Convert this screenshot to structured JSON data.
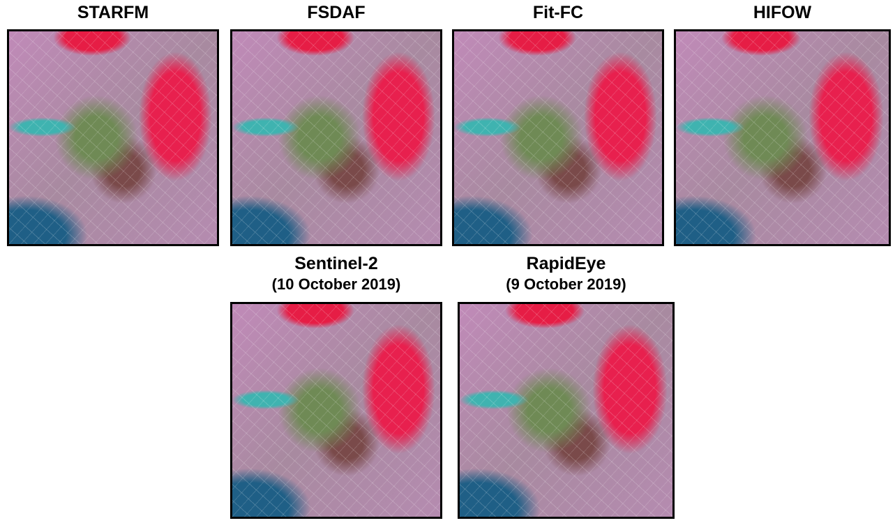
{
  "panels": [
    {
      "title": "STARFM"
    },
    {
      "title": "FSDAF"
    },
    {
      "title": "Fit-FC"
    },
    {
      "title": "HIFOW"
    },
    {
      "title": "Sentinel-2",
      "subtitle": "(10 October 2019)"
    },
    {
      "title": "RapidEye",
      "subtitle": "(9 October 2019)"
    }
  ]
}
